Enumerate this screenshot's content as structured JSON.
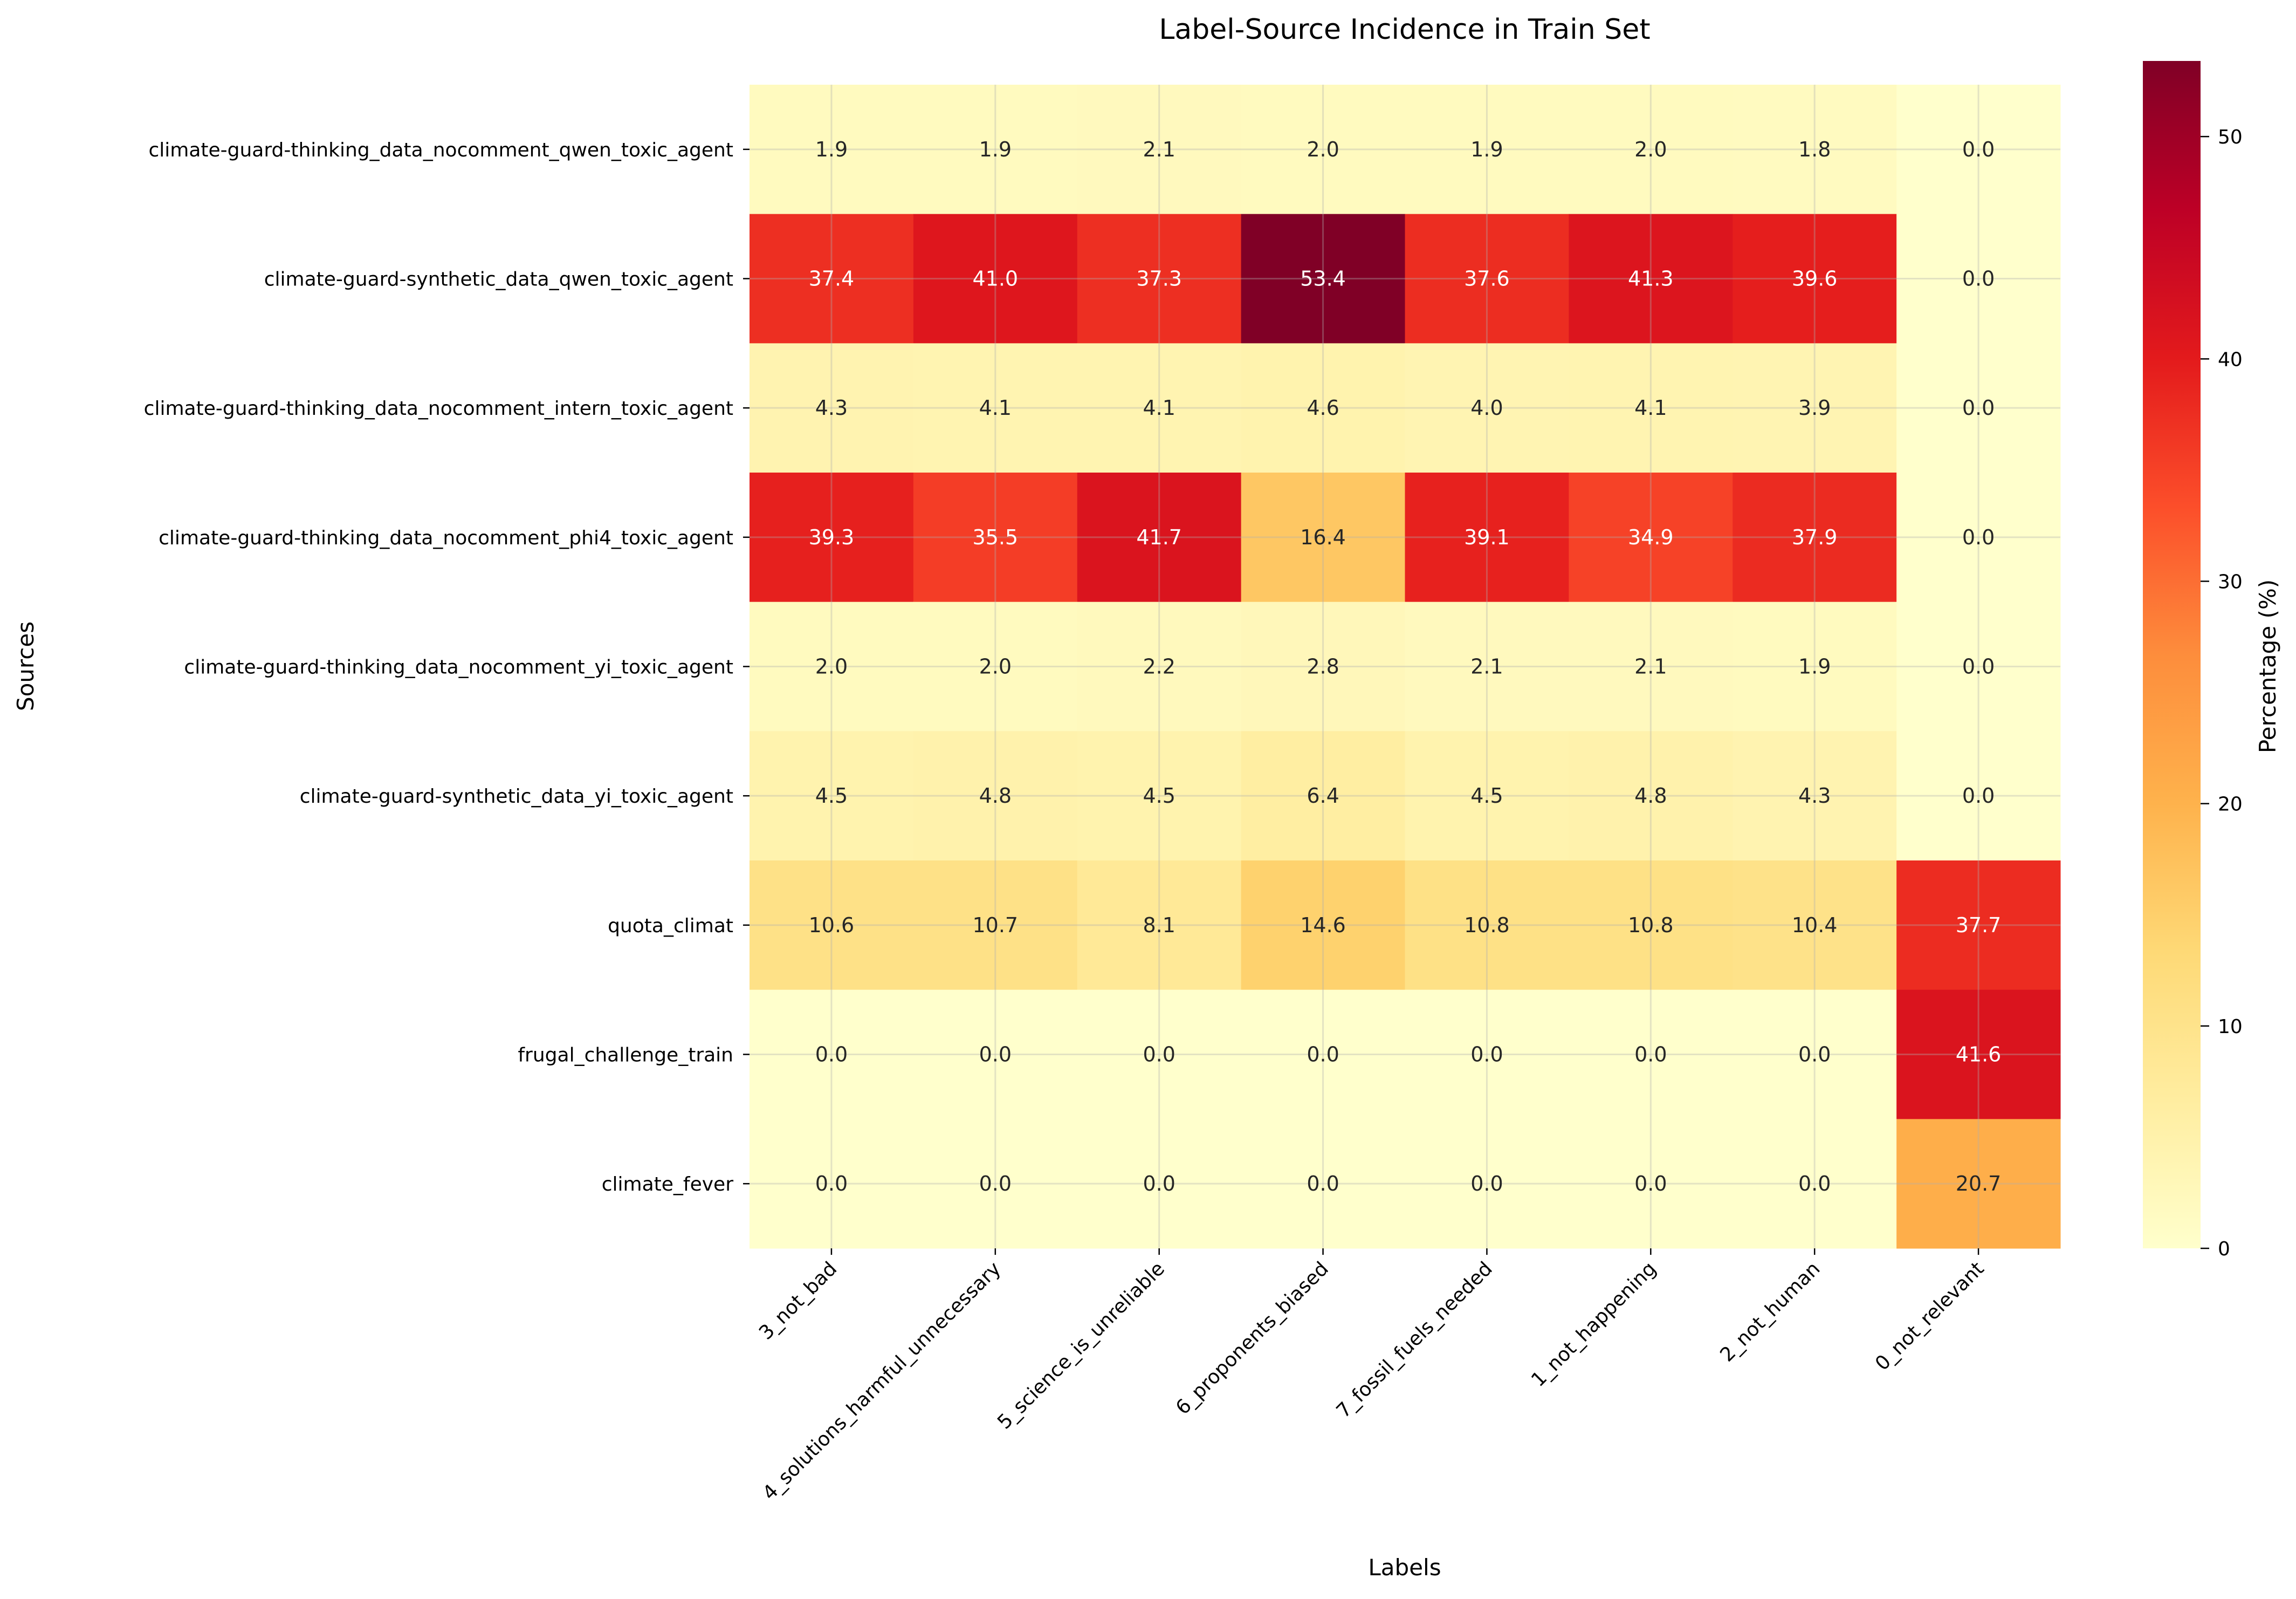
{
  "chart_data": {
    "type": "heatmap",
    "title": "Label-Source Incidence in Train Set",
    "xlabel": "Labels",
    "ylabel": "Sources",
    "colorbar_label": "Percentage (%)",
    "colormap": "YlOrRd",
    "colormap_stops": [
      "#ffffcc",
      "#ffeda0",
      "#fed976",
      "#feb24c",
      "#fd8d3c",
      "#fc4e2a",
      "#e31a1c",
      "#bd0026",
      "#800026"
    ],
    "color_range": [
      0,
      53.4
    ],
    "colorbar_ticks": [
      0,
      10,
      20,
      30,
      40,
      50
    ],
    "grid": true,
    "columns": [
      "3_not_bad",
      "4_solutions_harmful_unnecessary",
      "5_science_is_unreliable",
      "6_proponents_biased",
      "7_fossil_fuels_needed",
      "1_not_happening",
      "2_not_human",
      "0_not_relevant"
    ],
    "rows": [
      "climate-guard-thinking_data_nocomment_qwen_toxic_agent",
      "climate-guard-synthetic_data_qwen_toxic_agent",
      "climate-guard-thinking_data_nocomment_intern_toxic_agent",
      "climate-guard-thinking_data_nocomment_phi4_toxic_agent",
      "climate-guard-thinking_data_nocomment_yi_toxic_agent",
      "climate-guard-synthetic_data_yi_toxic_agent",
      "quota_climat",
      "frugal_challenge_train",
      "climate_fever"
    ],
    "values": [
      [
        1.9,
        1.9,
        2.1,
        2.0,
        1.9,
        2.0,
        1.8,
        0.0
      ],
      [
        37.4,
        41.0,
        37.3,
        53.4,
        37.6,
        41.3,
        39.6,
        0.0
      ],
      [
        4.3,
        4.1,
        4.1,
        4.6,
        4.0,
        4.1,
        3.9,
        0.0
      ],
      [
        39.3,
        35.5,
        41.7,
        16.4,
        39.1,
        34.9,
        37.9,
        0.0
      ],
      [
        2.0,
        2.0,
        2.2,
        2.8,
        2.1,
        2.1,
        1.9,
        0.0
      ],
      [
        4.5,
        4.8,
        4.5,
        6.4,
        4.5,
        4.8,
        4.3,
        0.0
      ],
      [
        10.6,
        10.7,
        8.1,
        14.6,
        10.8,
        10.8,
        10.4,
        37.7
      ],
      [
        0.0,
        0.0,
        0.0,
        0.0,
        0.0,
        0.0,
        0.0,
        41.6
      ],
      [
        0.0,
        0.0,
        0.0,
        0.0,
        0.0,
        0.0,
        0.0,
        20.7
      ]
    ]
  }
}
